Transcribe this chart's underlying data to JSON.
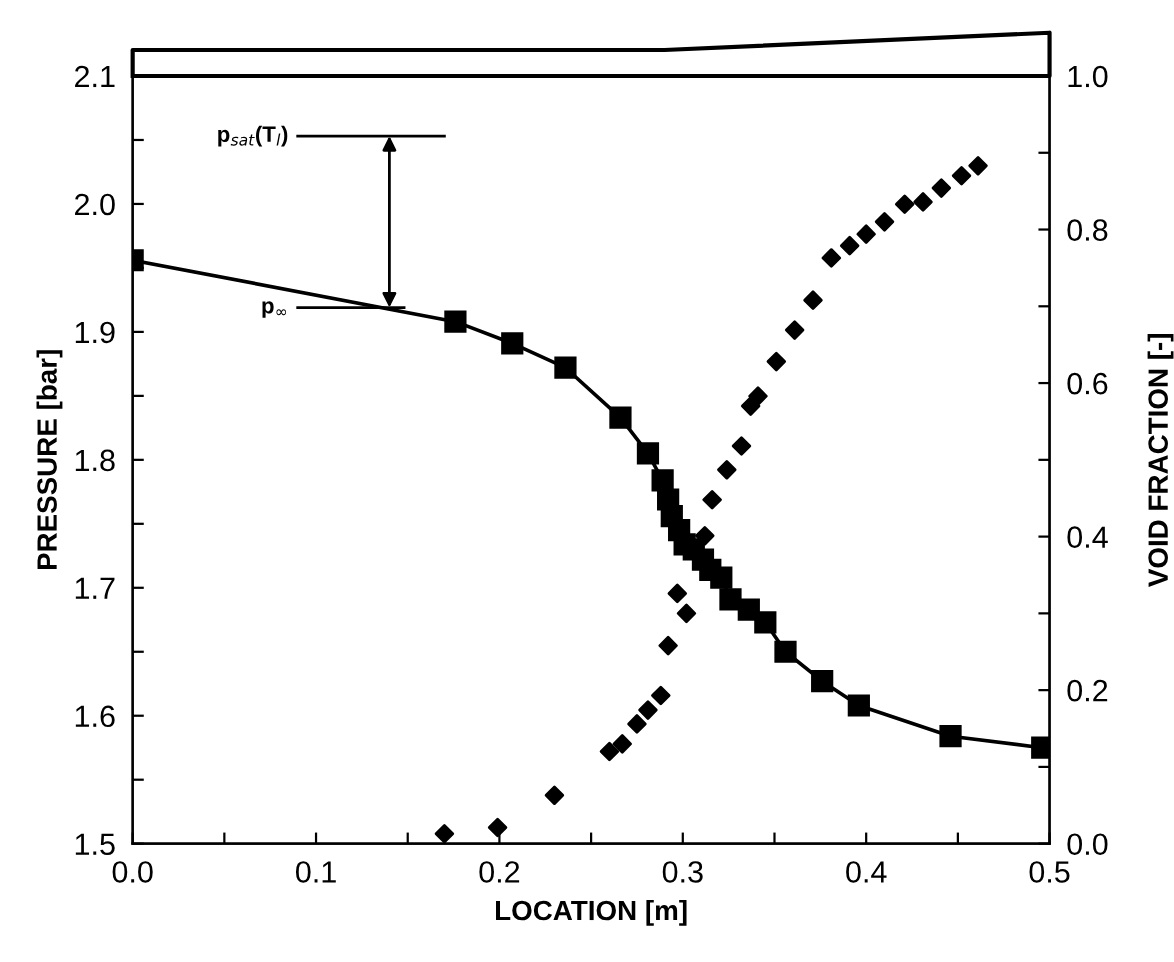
{
  "chart_data": {
    "type": "line",
    "xlabel": "LOCATION [m]",
    "ylabel": "PRESSURE [bar]",
    "y2label": "VOID FRACTION [-]",
    "xlim": [
      0.0,
      0.5
    ],
    "ylim": [
      1.5,
      2.1
    ],
    "y2lim": [
      0.0,
      1.0
    ],
    "xticks": [
      {
        "value": 0.0,
        "label": "0.0"
      },
      {
        "value": 0.05,
        "label": null
      },
      0.1,
      {
        "value": 0.15,
        "label": null
      },
      0.2,
      {
        "value": 0.25,
        "label": null
      },
      0.3,
      {
        "value": 0.35,
        "label": null
      },
      0.4,
      {
        "value": 0.45,
        "label": null
      },
      0.5
    ],
    "yticks": [
      1.5,
      {
        "value": 1.55,
        "label": null
      },
      1.6,
      {
        "value": 1.65,
        "label": null
      },
      1.7,
      {
        "value": 1.75,
        "label": null
      },
      1.8,
      {
        "value": 1.85,
        "label": null
      },
      1.9,
      {
        "value": 1.95,
        "label": null
      },
      {
        "value": 2.0,
        "label": "2.0"
      },
      {
        "value": 2.05,
        "label": null
      },
      2.1
    ],
    "y2ticks": [
      {
        "value": 0.0,
        "label": "0.0"
      },
      {
        "value": 0.1,
        "label": null
      },
      0.2,
      {
        "value": 0.3,
        "label": null
      },
      0.4,
      {
        "value": 0.5,
        "label": null
      },
      0.6,
      {
        "value": 0.7,
        "label": null
      },
      0.8,
      {
        "value": 0.9,
        "label": null
      },
      {
        "value": 1.0,
        "label": "1.0"
      }
    ],
    "grid": false,
    "legend": false,
    "series": [
      {
        "type": "line",
        "color": "#000000",
        "marker": "square",
        "line_style": "solid",
        "x": [
          0.0,
          0.176,
          0.207,
          0.236,
          0.266,
          0.281,
          0.289,
          0.292,
          0.294,
          0.298,
          0.301,
          0.306,
          0.311,
          0.315,
          0.321,
          0.326,
          0.336,
          0.345,
          0.356,
          0.376,
          0.396,
          0.446,
          0.496
        ],
        "values": [
          1.956,
          1.908,
          1.891,
          1.872,
          1.833,
          1.805,
          1.784,
          1.769,
          1.756,
          1.745,
          1.734,
          1.73,
          1.722,
          1.714,
          1.708,
          1.691,
          1.683,
          1.673,
          1.65,
          1.627,
          1.608,
          1.584,
          1.575
        ]
      },
      {
        "type": "scatter",
        "color": "#000000",
        "marker": "diamond",
        "axis": "y2",
        "x": [
          0.17,
          0.199,
          0.23,
          0.26,
          0.267,
          0.275,
          0.281,
          0.288,
          0.292,
          0.297,
          0.302,
          0.312,
          0.316,
          0.324,
          0.332,
          0.337,
          0.341,
          0.351,
          0.361,
          0.371,
          0.381,
          0.391,
          0.4,
          0.41,
          0.421,
          0.431,
          0.441,
          0.452,
          0.461
        ],
        "values": [
          0.013,
          0.021,
          0.063,
          0.12,
          0.13,
          0.156,
          0.174,
          0.193,
          0.258,
          0.326,
          0.3,
          0.401,
          0.448,
          0.487,
          0.518,
          0.57,
          0.583,
          0.628,
          0.669,
          0.708,
          0.763,
          0.779,
          0.794,
          0.81,
          0.833,
          0.836,
          0.854,
          0.87,
          0.883
        ]
      }
    ],
    "ref_lines": [
      {
        "axis": "y",
        "value": 2.053,
        "label": "p$_{sat}$(T$_{l}$)",
        "color": "#000000",
        "line_style": "solid"
      },
      {
        "axis": "y",
        "value": 1.919,
        "label": "p$_{∞}$",
        "color": "#000000",
        "line_style": "solid"
      }
    ]
  }
}
